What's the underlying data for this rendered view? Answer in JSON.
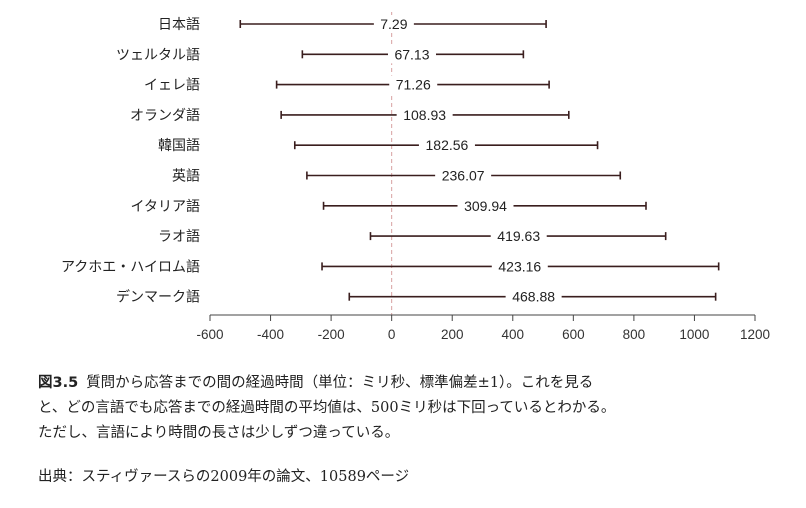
{
  "chart_data": {
    "type": "errorbar",
    "categories": [
      "日本語",
      "ツェルタル語",
      "イェレ語",
      "オランダ語",
      "韓国語",
      "英語",
      "イタリア語",
      "ラオ語",
      "アクホエ・ハイロム語",
      "デンマーク語"
    ],
    "means": [
      7.29,
      67.13,
      71.26,
      108.93,
      182.56,
      236.07,
      309.94,
      419.63,
      423.16,
      468.88
    ],
    "mean_labels": [
      "7.29",
      "67.13",
      "71.26",
      "108.93",
      "182.56",
      "236.07",
      "309.94",
      "419.63",
      "423.16",
      "468.88"
    ],
    "lower": [
      -500,
      -295,
      -380,
      -365,
      -320,
      -280,
      -225,
      -70,
      -230,
      -140
    ],
    "upper": [
      510,
      435,
      520,
      585,
      680,
      755,
      840,
      905,
      1080,
      1070
    ],
    "xlim": [
      -600,
      1200
    ],
    "xticks": [
      "-600",
      "-400",
      "-200",
      "0",
      "200",
      "400",
      "600",
      "800",
      "1000",
      "1200"
    ],
    "reference_line": 0,
    "grid": false,
    "colors": {
      "bar": "#3a1e1e",
      "reference": "#d8a0a0",
      "axis": "#444444"
    }
  },
  "caption": {
    "label": "図3.5",
    "lines": [
      "質問から応答までの間の経過時間（単位：ミリ秒、標準偏差±1）。これを見る",
      "と、どの言語でも応答までの経過時間の平均値は、500ミリ秒は下回っているとわかる。",
      "ただし、言語により時間の長さは少しずつ違っている。"
    ],
    "source": "出典：スティヴァースらの2009年の論文、10589ページ"
  }
}
